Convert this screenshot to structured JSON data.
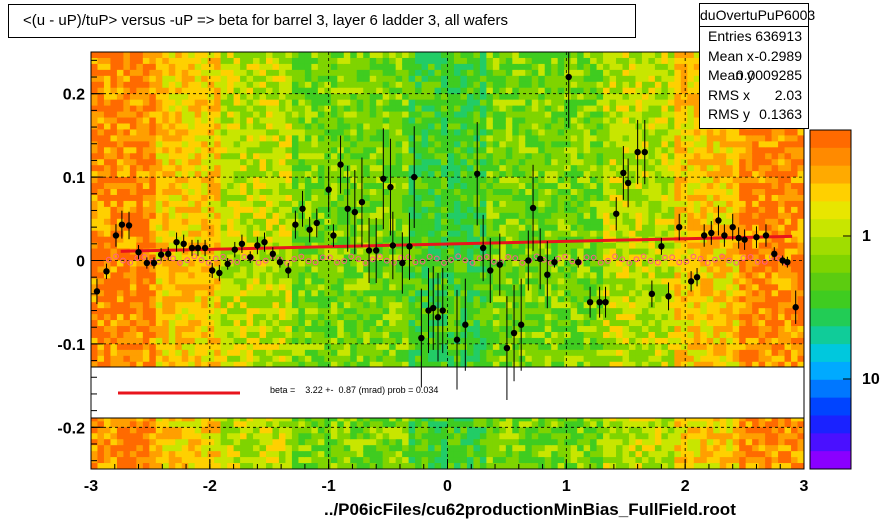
{
  "title": "<(u - uP)/tuP> versus  -uP => beta for barrel 3, layer 6 ladder 3, all wafers",
  "footer_path": "../P06icFiles/cu62productionMinBias_FullField.root",
  "stats": {
    "name": "duOvertuPuP6003",
    "rows": [
      {
        "key": "Entries",
        "value": "636913"
      },
      {
        "key": "Mean x",
        "value": "-0.2989"
      },
      {
        "key": "Mean y",
        "value": "0.0009285"
      },
      {
        "key": "RMS x",
        "value": "2.03"
      },
      {
        "key": "RMS y",
        "value": "0.1363"
      }
    ]
  },
  "fit_label": "beta =    3.22 +-  0.87 (mrad) prob = 0.034",
  "colors": {
    "points": "#000000",
    "profile_markers": "#ff5c8a",
    "fit_line": "#e8141c",
    "grid": "#000000"
  },
  "chart_data": {
    "type": "scatter",
    "title": "<(u - uP)/tuP> versus  -uP => beta for barrel 3, layer 6 ladder 3, all wafers",
    "xlim": [
      -3,
      3
    ],
    "ylim": [
      -0.25,
      0.25
    ],
    "x_ticks": [
      "-3",
      "-2",
      "-1",
      "0",
      "1",
      "2",
      "3"
    ],
    "y_ticks": [
      "0.2",
      "0.1",
      "0",
      "-0.1",
      "-0.2"
    ],
    "colorbar_ticks": [
      "1",
      "10"
    ],
    "grid": true,
    "fit_line": {
      "x": [
        -2.75,
        2.9
      ],
      "y": [
        0.011,
        0.029
      ]
    },
    "points": [
      {
        "x": -2.95,
        "y": -0.037
      },
      {
        "x": -2.87,
        "y": -0.013
      },
      {
        "x": -2.79,
        "y": 0.03
      },
      {
        "x": -2.74,
        "y": 0.043
      },
      {
        "x": -2.68,
        "y": 0.042
      },
      {
        "x": -2.6,
        "y": 0.01
      },
      {
        "x": -2.53,
        "y": -0.003
      },
      {
        "x": -2.47,
        "y": -0.003
      },
      {
        "x": -2.41,
        "y": 0.007
      },
      {
        "x": -2.35,
        "y": 0.008
      },
      {
        "x": -2.28,
        "y": 0.022
      },
      {
        "x": -2.22,
        "y": 0.02
      },
      {
        "x": -2.15,
        "y": 0.015
      },
      {
        "x": -2.1,
        "y": 0.015
      },
      {
        "x": -2.04,
        "y": 0.015
      },
      {
        "x": -1.98,
        "y": -0.012
      },
      {
        "x": -1.92,
        "y": -0.015
      },
      {
        "x": -1.85,
        "y": -0.004
      },
      {
        "x": -1.79,
        "y": 0.013
      },
      {
        "x": -1.73,
        "y": 0.02
      },
      {
        "x": -1.66,
        "y": 0.004
      },
      {
        "x": -1.6,
        "y": 0.018
      },
      {
        "x": -1.54,
        "y": 0.022
      },
      {
        "x": -1.47,
        "y": 0.008
      },
      {
        "x": -1.41,
        "y": -0.002
      },
      {
        "x": -1.34,
        "y": -0.012
      },
      {
        "x": -1.28,
        "y": 0.043
      },
      {
        "x": -1.22,
        "y": 0.062
      },
      {
        "x": -1.16,
        "y": 0.037
      },
      {
        "x": -1.1,
        "y": 0.045
      },
      {
        "x": -1.0,
        "y": 0.085
      },
      {
        "x": -0.96,
        "y": 0.03
      },
      {
        "x": -0.9,
        "y": 0.115
      },
      {
        "x": -0.84,
        "y": 0.062
      },
      {
        "x": -0.78,
        "y": 0.058
      },
      {
        "x": -0.72,
        "y": 0.07
      },
      {
        "x": -0.66,
        "y": 0.012
      },
      {
        "x": -0.6,
        "y": 0.012
      },
      {
        "x": -0.54,
        "y": 0.098
      },
      {
        "x": -0.48,
        "y": 0.088
      },
      {
        "x": -0.46,
        "y": 0.018
      },
      {
        "x": -0.38,
        "y": -0.003
      },
      {
        "x": -0.32,
        "y": 0.017
      },
      {
        "x": -0.28,
        "y": 0.1
      },
      {
        "x": -0.22,
        "y": -0.093
      },
      {
        "x": -0.16,
        "y": -0.06
      },
      {
        "x": -0.12,
        "y": -0.057
      },
      {
        "x": -0.08,
        "y": -0.068
      },
      {
        "x": -0.04,
        "y": -0.06
      },
      {
        "x": 0.08,
        "y": -0.095
      },
      {
        "x": 0.15,
        "y": -0.077
      },
      {
        "x": 0.25,
        "y": 0.104
      },
      {
        "x": 0.3,
        "y": 0.015
      },
      {
        "x": 0.36,
        "y": -0.012
      },
      {
        "x": 0.44,
        "y": -0.005
      },
      {
        "x": 0.5,
        "y": -0.105
      },
      {
        "x": 0.56,
        "y": -0.087
      },
      {
        "x": 0.62,
        "y": -0.077
      },
      {
        "x": 0.68,
        "y": 0.0
      },
      {
        "x": 0.72,
        "y": 0.063
      },
      {
        "x": 0.78,
        "y": 0.002
      },
      {
        "x": 0.84,
        "y": -0.017
      },
      {
        "x": 0.9,
        "y": -0.002
      },
      {
        "x": 1.02,
        "y": 0.22
      },
      {
        "x": 1.1,
        "y": -0.002
      },
      {
        "x": 1.2,
        "y": -0.05
      },
      {
        "x": 1.28,
        "y": -0.05
      },
      {
        "x": 1.33,
        "y": -0.05
      },
      {
        "x": 1.42,
        "y": 0.056
      },
      {
        "x": 1.48,
        "y": 0.105
      },
      {
        "x": 1.52,
        "y": 0.093
      },
      {
        "x": 1.6,
        "y": 0.13
      },
      {
        "x": 1.66,
        "y": 0.13
      },
      {
        "x": 1.72,
        "y": -0.04
      },
      {
        "x": 1.8,
        "y": 0.017
      },
      {
        "x": 1.86,
        "y": -0.043
      },
      {
        "x": 1.95,
        "y": 0.04
      },
      {
        "x": 2.05,
        "y": -0.025
      },
      {
        "x": 2.1,
        "y": -0.02
      },
      {
        "x": 2.16,
        "y": 0.03
      },
      {
        "x": 2.22,
        "y": 0.033
      },
      {
        "x": 2.28,
        "y": 0.048
      },
      {
        "x": 2.33,
        "y": 0.03
      },
      {
        "x": 2.4,
        "y": 0.04
      },
      {
        "x": 2.45,
        "y": 0.027
      },
      {
        "x": 2.5,
        "y": 0.025
      },
      {
        "x": 2.6,
        "y": 0.028
      },
      {
        "x": 2.68,
        "y": 0.03
      },
      {
        "x": 2.75,
        "y": 0.008
      },
      {
        "x": 2.82,
        "y": 0.0
      },
      {
        "x": 2.86,
        "y": -0.002
      },
      {
        "x": 2.93,
        "y": -0.056
      }
    ]
  }
}
